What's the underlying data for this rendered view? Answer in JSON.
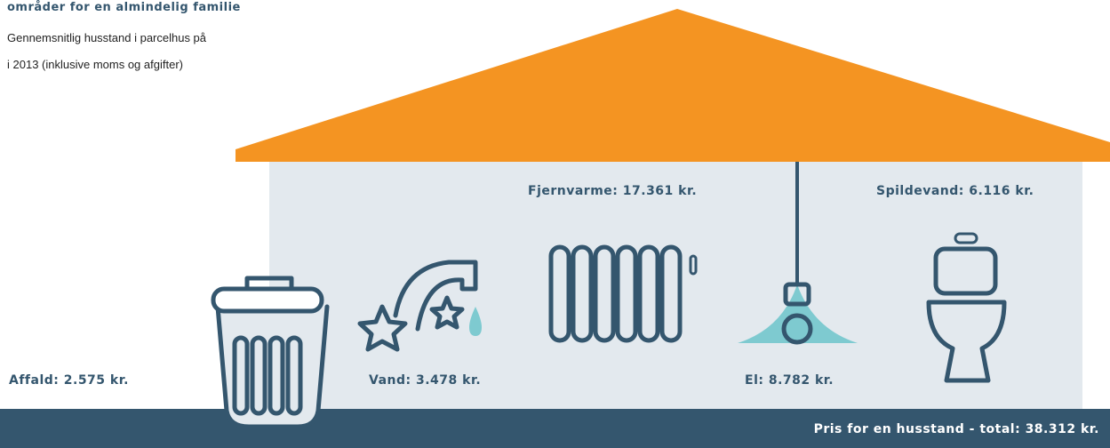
{
  "header": {
    "title": "områder for en almindelig familie",
    "subtitle_lines": [
      "Gennemsnitlig husstand i parcelhus på",
      "i 2013 (inklusive moms og afgifter)"
    ]
  },
  "items": [
    {
      "label": "Affald: 2.575 kr."
    },
    {
      "label": "Vand: 3.478 kr."
    },
    {
      "label": "Fjernvarme: 17.361 kr."
    },
    {
      "label": "El: 8.782 kr."
    },
    {
      "label": "Spildevand: 6.116 kr."
    }
  ],
  "total": {
    "label": "Pris for en husstand - total: 38.312 kr."
  }
}
